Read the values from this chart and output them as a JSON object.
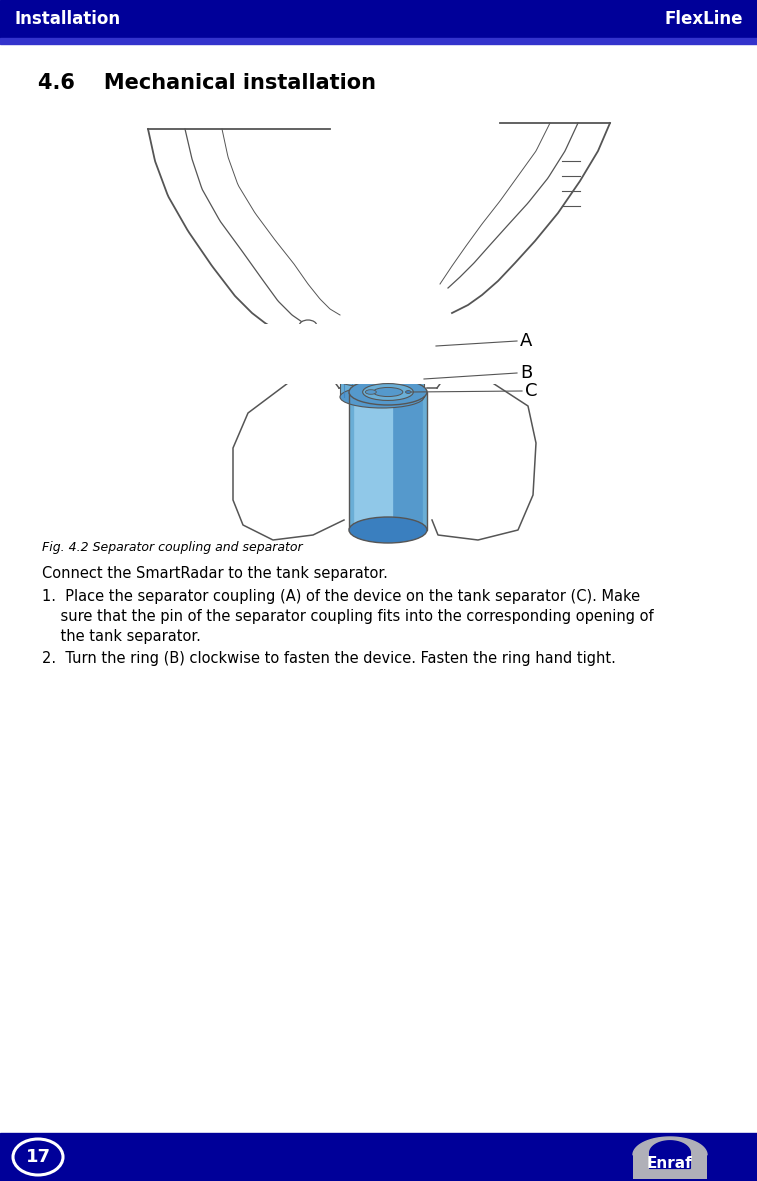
{
  "header_bg_color": "#000099",
  "header_stripe_color": "#0000CC",
  "header_text_color": "#FFFFFF",
  "header_left": "Installation",
  "header_right": "FlexLine",
  "section_title": "4.6    Mechanical installation",
  "fig_caption": "Fig. 4.2 Separator coupling and separator",
  "footer_bg_color": "#000099",
  "footer_text_color": "#FFFFFF",
  "footer_page": "17",
  "footer_logo": "Enraf",
  "bg_color": "#FFFFFF",
  "blue_color": "#6aaed6",
  "blue_dark": "#3a7fbf",
  "blue_mid": "#5599cc",
  "blue_light": "#90c8e8",
  "line_color": "#555555",
  "line_color_light": "#888888"
}
